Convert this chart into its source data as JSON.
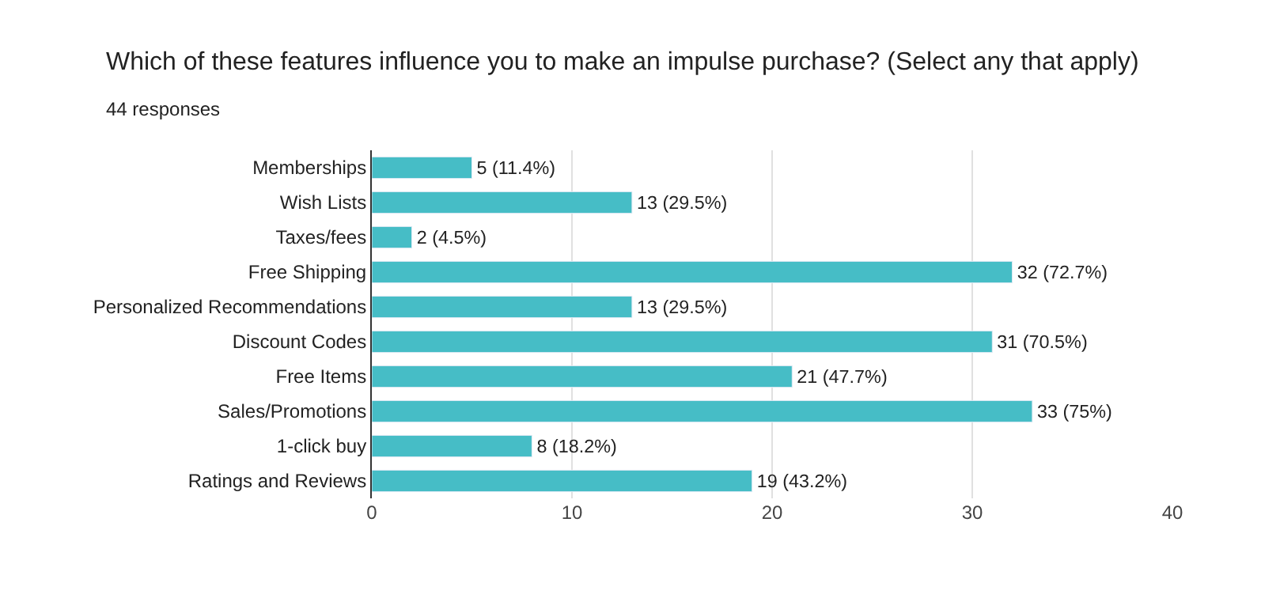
{
  "chart_data": {
    "type": "bar",
    "orientation": "horizontal",
    "title": "Which of these features influence you to make an impulse purchase? (Select any that apply)",
    "subtitle": "44 responses",
    "categories": [
      "Memberships",
      "Wish Lists",
      "Taxes/fees",
      "Free Shipping",
      "Personalized Recommendations",
      "Discount Codes",
      "Free Items",
      "Sales/Promotions",
      "1-click buy",
      "Ratings and Reviews"
    ],
    "values": [
      5,
      13,
      2,
      32,
      13,
      31,
      21,
      33,
      8,
      19
    ],
    "value_labels": [
      "5 (11.4%)",
      "13 (29.5%)",
      "2 (4.5%)",
      "32 (72.7%)",
      "13 (29.5%)",
      "31 (70.5%)",
      "21 (47.7%)",
      "33 (75%)",
      "8 (18.2%)",
      "19 (43.2%)"
    ],
    "color": "#46bdc6",
    "xlim": [
      0,
      40
    ],
    "xticks": [
      0,
      10,
      20,
      30,
      40
    ],
    "grid": "x",
    "legend": false
  }
}
